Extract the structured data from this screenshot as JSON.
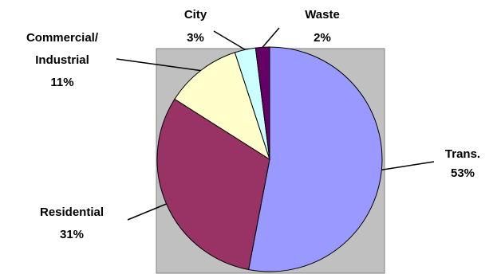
{
  "chart_data": {
    "type": "pie",
    "slices": [
      {
        "label": "Trans.",
        "value": 53,
        "percent_label": "53%",
        "color": "#9999ff"
      },
      {
        "label": "Residential",
        "value": 31,
        "percent_label": "31%",
        "color": "#993366"
      },
      {
        "label": "Commercial/ Industrial",
        "label_lines": [
          "Commercial/",
          "Industrial"
        ],
        "value": 11,
        "percent_label": "11%",
        "color": "#ffffcc"
      },
      {
        "label": "City",
        "value": 3,
        "percent_label": "3%",
        "color": "#ccffff"
      },
      {
        "label": "Waste",
        "value": 2,
        "percent_label": "2%",
        "color": "#660066"
      }
    ],
    "plot_area_color": "#c0c0c0",
    "legend": "none"
  }
}
